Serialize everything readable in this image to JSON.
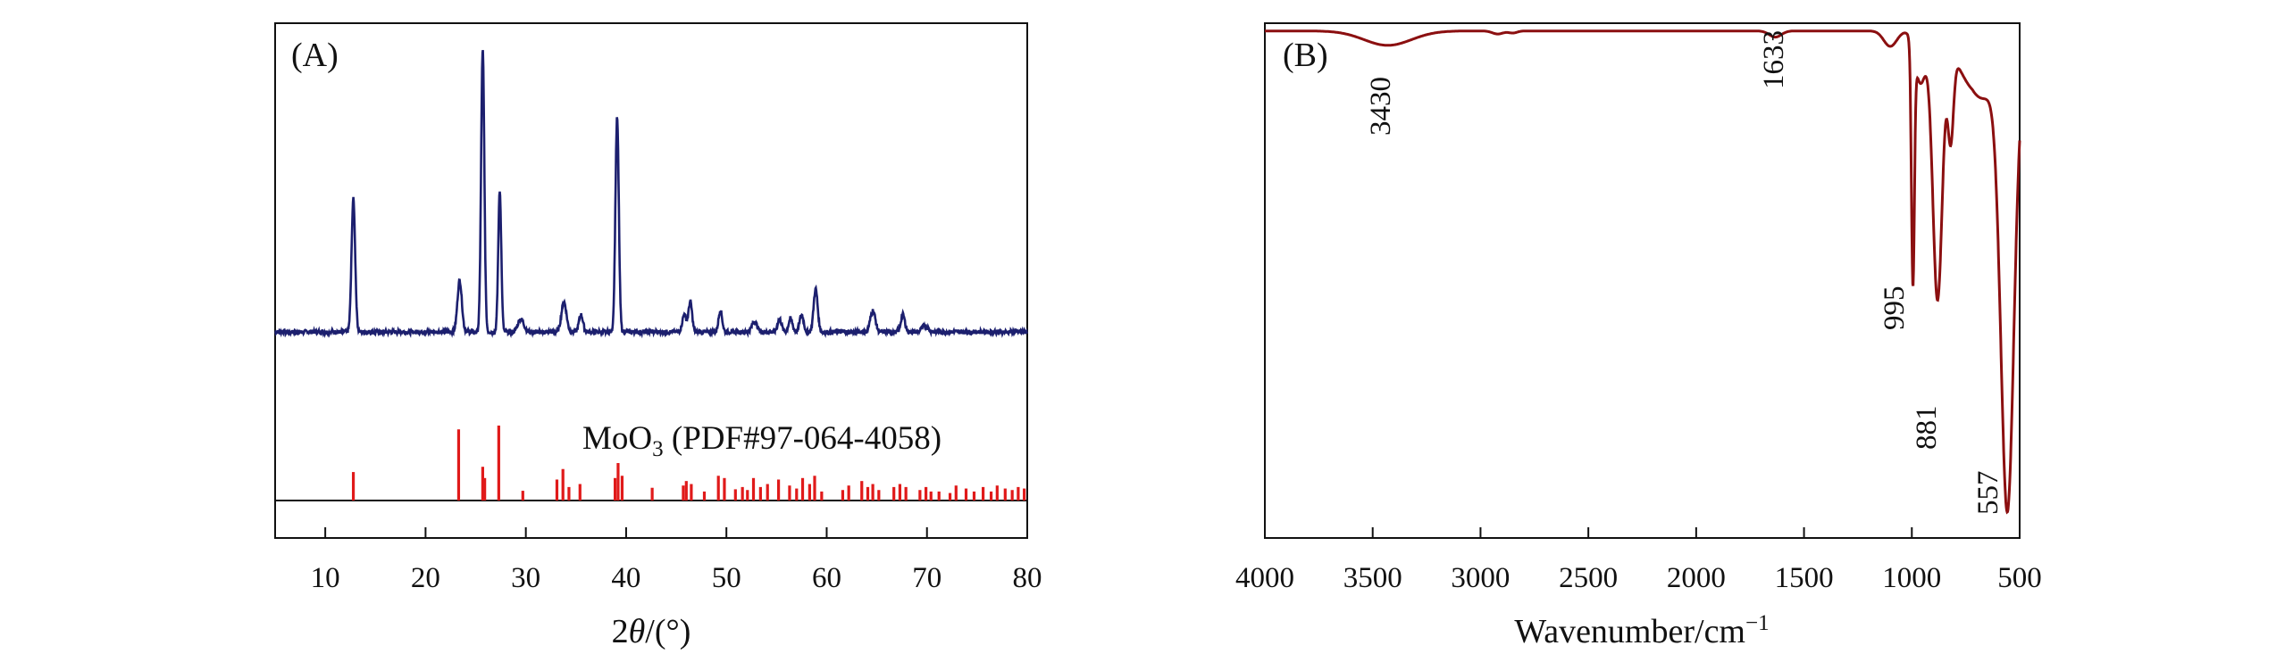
{
  "chart_data": [
    {
      "type": "line",
      "panel_label": "(A)",
      "xlabel_parts": {
        "prefix": "2",
        "italic": "θ",
        "suffix": "/(°)"
      },
      "ylabel": "",
      "xlim": [
        5,
        80
      ],
      "xticks": [
        10,
        20,
        30,
        40,
        50,
        60,
        70,
        80
      ],
      "yticks": [],
      "grid": false,
      "series": [
        {
          "color": "#1c1f6e",
          "baseline": 0,
          "peaks": [
            {
              "x": 12.8,
              "h": 0.31,
              "w": 0.18
            },
            {
              "x": 23.4,
              "h": 0.12,
              "w": 0.22
            },
            {
              "x": 25.7,
              "h": 0.66,
              "w": 0.16
            },
            {
              "x": 27.4,
              "h": 0.33,
              "w": 0.15
            },
            {
              "x": 29.5,
              "h": 0.03,
              "w": 0.3
            },
            {
              "x": 33.8,
              "h": 0.07,
              "w": 0.25
            },
            {
              "x": 35.5,
              "h": 0.04,
              "w": 0.2
            },
            {
              "x": 39.1,
              "h": 0.5,
              "w": 0.17
            },
            {
              "x": 45.8,
              "h": 0.04,
              "w": 0.2
            },
            {
              "x": 46.4,
              "h": 0.07,
              "w": 0.18
            },
            {
              "x": 49.4,
              "h": 0.05,
              "w": 0.18
            },
            {
              "x": 52.8,
              "h": 0.025,
              "w": 0.25
            },
            {
              "x": 55.3,
              "h": 0.03,
              "w": 0.2
            },
            {
              "x": 56.4,
              "h": 0.03,
              "w": 0.2
            },
            {
              "x": 57.5,
              "h": 0.04,
              "w": 0.2
            },
            {
              "x": 58.9,
              "h": 0.1,
              "w": 0.2
            },
            {
              "x": 64.6,
              "h": 0.05,
              "w": 0.25
            },
            {
              "x": 67.6,
              "h": 0.04,
              "w": 0.2
            },
            {
              "x": 69.8,
              "h": 0.015,
              "w": 0.3
            }
          ]
        }
      ],
      "reference": {
        "label_main": "MoO",
        "label_sub": "3",
        "label_rest": " (PDF#97-064-4058)",
        "color": "#e01a1a",
        "sticks": [
          {
            "x": 12.8,
            "h": 0.38
          },
          {
            "x": 23.3,
            "h": 0.95
          },
          {
            "x": 25.7,
            "h": 0.45
          },
          {
            "x": 25.9,
            "h": 0.3
          },
          {
            "x": 27.3,
            "h": 1.0
          },
          {
            "x": 29.7,
            "h": 0.13
          },
          {
            "x": 33.1,
            "h": 0.28
          },
          {
            "x": 33.7,
            "h": 0.42
          },
          {
            "x": 34.3,
            "h": 0.18
          },
          {
            "x": 35.4,
            "h": 0.22
          },
          {
            "x": 38.9,
            "h": 0.3
          },
          {
            "x": 39.2,
            "h": 0.5
          },
          {
            "x": 39.6,
            "h": 0.33
          },
          {
            "x": 42.6,
            "h": 0.17
          },
          {
            "x": 45.7,
            "h": 0.2
          },
          {
            "x": 46.0,
            "h": 0.26
          },
          {
            "x": 46.5,
            "h": 0.22
          },
          {
            "x": 47.8,
            "h": 0.12
          },
          {
            "x": 49.2,
            "h": 0.33
          },
          {
            "x": 49.8,
            "h": 0.3
          },
          {
            "x": 50.9,
            "h": 0.15
          },
          {
            "x": 51.6,
            "h": 0.18
          },
          {
            "x": 52.1,
            "h": 0.14
          },
          {
            "x": 52.7,
            "h": 0.3
          },
          {
            "x": 53.4,
            "h": 0.18
          },
          {
            "x": 54.1,
            "h": 0.22
          },
          {
            "x": 55.2,
            "h": 0.28
          },
          {
            "x": 56.3,
            "h": 0.2
          },
          {
            "x": 57.0,
            "h": 0.16
          },
          {
            "x": 57.6,
            "h": 0.3
          },
          {
            "x": 58.3,
            "h": 0.22
          },
          {
            "x": 58.8,
            "h": 0.33
          },
          {
            "x": 59.5,
            "h": 0.12
          },
          {
            "x": 61.6,
            "h": 0.14
          },
          {
            "x": 62.2,
            "h": 0.2
          },
          {
            "x": 63.5,
            "h": 0.26
          },
          {
            "x": 64.1,
            "h": 0.18
          },
          {
            "x": 64.6,
            "h": 0.22
          },
          {
            "x": 65.2,
            "h": 0.14
          },
          {
            "x": 66.7,
            "h": 0.18
          },
          {
            "x": 67.3,
            "h": 0.22
          },
          {
            "x": 67.9,
            "h": 0.18
          },
          {
            "x": 69.3,
            "h": 0.14
          },
          {
            "x": 69.9,
            "h": 0.18
          },
          {
            "x": 70.4,
            "h": 0.12
          },
          {
            "x": 71.2,
            "h": 0.12
          },
          {
            "x": 72.3,
            "h": 0.1
          },
          {
            "x": 72.9,
            "h": 0.2
          },
          {
            "x": 73.9,
            "h": 0.16
          },
          {
            "x": 74.7,
            "h": 0.12
          },
          {
            "x": 75.6,
            "h": 0.18
          },
          {
            "x": 76.4,
            "h": 0.12
          },
          {
            "x": 77.0,
            "h": 0.2
          },
          {
            "x": 77.8,
            "h": 0.16
          },
          {
            "x": 78.5,
            "h": 0.14
          },
          {
            "x": 79.1,
            "h": 0.18
          },
          {
            "x": 79.7,
            "h": 0.16
          }
        ]
      }
    },
    {
      "type": "line",
      "panel_label": "(B)",
      "xlabel_parts": {
        "prefix": "Wavenumber/cm",
        "sup": "−1"
      },
      "ylabel": "",
      "xlim": [
        4000,
        500
      ],
      "x_reversed": true,
      "xticks": [
        4000,
        3500,
        3000,
        2500,
        2000,
        1500,
        1000,
        500
      ],
      "yticks": [],
      "grid": false,
      "series": [
        {
          "color": "#8b0f10",
          "baseline": 0.985,
          "dips": [
            {
              "x": 3430,
              "depth": 0.028,
              "w": 110
            },
            {
              "x": 2920,
              "depth": 0.006,
              "w": 25
            },
            {
              "x": 2850,
              "depth": 0.004,
              "w": 20
            },
            {
              "x": 1633,
              "depth": 0.012,
              "w": 28
            },
            {
              "x": 1100,
              "depth": 0.03,
              "w": 30
            },
            {
              "x": 995,
              "depth": 0.46,
              "w": 7
            },
            {
              "x": 960,
              "depth": 0.1,
              "w": 25
            },
            {
              "x": 881,
              "depth": 0.51,
              "w": 22
            },
            {
              "x": 820,
              "depth": 0.17,
              "w": 13
            },
            {
              "x": 690,
              "depth": 0.12,
              "w": 90
            },
            {
              "x": 557,
              "depth": 0.85,
              "w": 30
            }
          ]
        }
      ],
      "annotations": [
        {
          "text": "3430",
          "x": 3430
        },
        {
          "text": "1633",
          "x": 1633
        },
        {
          "text": "995",
          "x": 995
        },
        {
          "text": "881",
          "x": 881
        },
        {
          "text": "557",
          "x": 557
        }
      ]
    }
  ]
}
